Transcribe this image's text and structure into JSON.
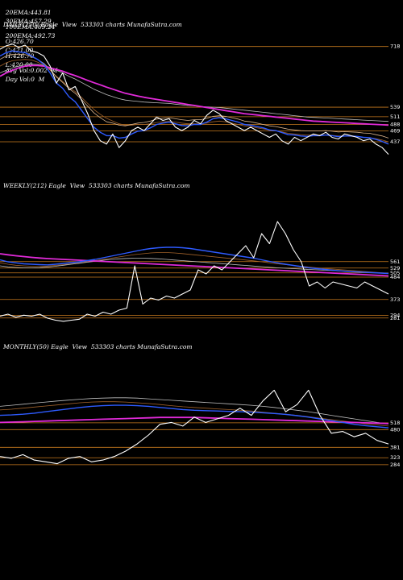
{
  "header": {
    "row1": [
      {
        "label": "20EMA:",
        "value": "443.81"
      },
      {
        "label": "100EMA:",
        "value": "469.24"
      },
      {
        "label": "O:",
        "value": "426.70"
      },
      {
        "label": "H:",
        "value": "426.70"
      },
      {
        "label": "Avg Vol:",
        "value": "0.002  M"
      }
    ],
    "row2": [
      {
        "label": "30EMA:",
        "value": "457.29"
      },
      {
        "label": "200EMA:",
        "value": "492.73"
      },
      {
        "label": "C:",
        "value": "421.00"
      },
      {
        "label": "L:",
        "value": "420.00"
      },
      {
        "label": "Day Vol:",
        "value": "0  M"
      }
    ]
  },
  "colors": {
    "background": "#000000",
    "price": "#ffffff",
    "level_line": "#c87a1e",
    "ema_blue": "#2e5bff",
    "ema_magenta": "#e02ad8",
    "ema_tan": "#d9b38c",
    "ema_gray": "#bdbdbd",
    "ema_brown": "#a0612a"
  },
  "chart_data": [
    {
      "type": "line",
      "title": "DAILY(250) Eagle  View  533303 charts MunafaSutra.com",
      "ylim": [
        380,
        760
      ],
      "levels": [
        {
          "value": 718,
          "label": "718"
        },
        {
          "value": 539,
          "label": "539"
        },
        {
          "value": 511,
          "label": "511"
        },
        {
          "value": 488,
          "label": "488"
        },
        {
          "value": 469,
          "label": "469"
        },
        {
          "value": 437,
          "label": "437"
        }
      ],
      "series": [
        {
          "key": "price",
          "values": [
            710,
            720,
            725,
            715,
            722,
            705,
            700,
            690,
            660,
            610,
            640,
            590,
            600,
            560,
            520,
            470,
            440,
            430,
            460,
            420,
            440,
            470,
            480,
            470,
            490,
            510,
            500,
            505,
            480,
            470,
            480,
            500,
            490,
            515,
            530,
            520,
            500,
            490,
            480,
            470,
            480,
            470,
            460,
            450,
            460,
            440,
            430,
            450,
            440,
            450,
            460,
            455,
            465,
            450,
            445,
            460,
            455,
            450,
            440,
            445,
            430,
            420,
            400
          ]
        },
        {
          "key": "ema20",
          "values": [
            690,
            700,
            705,
            702,
            700,
            690,
            680,
            665,
            640,
            610,
            595,
            570,
            555,
            530,
            505,
            480,
            465,
            455,
            455,
            448,
            450,
            460,
            468,
            470,
            478,
            488,
            492,
            495,
            490,
            485,
            484,
            488,
            488,
            495,
            505,
            508,
            505,
            500,
            495,
            488,
            486,
            482,
            478,
            472,
            470,
            464,
            458,
            457,
            454,
            453,
            455,
            455,
            457,
            455,
            452,
            454,
            454,
            453,
            450,
            449,
            444,
            438,
            430
          ]
        },
        {
          "key": "ema30",
          "values": [
            680,
            690,
            695,
            695,
            694,
            688,
            680,
            668,
            650,
            628,
            612,
            594,
            580,
            562,
            542,
            522,
            508,
            496,
            492,
            486,
            484,
            488,
            492,
            494,
            498,
            504,
            506,
            508,
            505,
            502,
            500,
            502,
            502,
            506,
            512,
            514,
            512,
            508,
            504,
            498,
            496,
            492,
            488,
            484,
            482,
            478,
            474,
            472,
            470,
            469,
            469,
            469,
            470,
            468,
            466,
            467,
            466,
            465,
            463,
            462,
            458,
            454,
            448
          ]
        },
        {
          "key": "ema100",
          "values": [
            640,
            648,
            655,
            660,
            664,
            666,
            665,
            662,
            656,
            648,
            640,
            630,
            622,
            612,
            602,
            592,
            584,
            576,
            570,
            564,
            560,
            558,
            556,
            554,
            553,
            552,
            551,
            550,
            548,
            546,
            544,
            543,
            541,
            540,
            539,
            538,
            536,
            534,
            532,
            530,
            528,
            526,
            524,
            522,
            520,
            518,
            516,
            514,
            512,
            510,
            509,
            508,
            507,
            506,
            505,
            504,
            503,
            502,
            501,
            500,
            499,
            498,
            497
          ]
        },
        {
          "key": "ema200",
          "values": [
            630,
            640,
            648,
            655,
            660,
            662,
            662,
            660,
            655,
            650,
            645,
            638,
            632,
            625,
            618,
            611,
            605,
            598,
            592,
            586,
            580,
            576,
            572,
            568,
            565,
            562,
            559,
            556,
            553,
            550,
            547,
            544,
            541,
            538,
            535,
            532,
            529,
            526,
            523,
            520,
            518,
            516,
            514,
            512,
            510,
            508,
            506,
            504,
            502,
            500,
            498,
            497,
            496,
            495,
            494,
            493,
            492,
            491,
            490,
            489,
            488,
            487,
            486
          ]
        },
        {
          "key": "ema_extra",
          "values": [
            660,
            670,
            676,
            678,
            680,
            678,
            672,
            662,
            648,
            630,
            615,
            598,
            585,
            568,
            550,
            532,
            518,
            506,
            498,
            490,
            486,
            486,
            488,
            488,
            490,
            494,
            496,
            497,
            495,
            492,
            490,
            490,
            490,
            492,
            496,
            498,
            496,
            492,
            488,
            484,
            482,
            478,
            475,
            472,
            470,
            466,
            462,
            460,
            458,
            457,
            457,
            457,
            457,
            456,
            454,
            454,
            453,
            452,
            450,
            449,
            446,
            442,
            437
          ]
        }
      ]
    },
    {
      "type": "line",
      "title": "WEEKLY(212) Eagle  View  533303 charts MunafaSutra.com",
      "ylim": [
        260,
        900
      ],
      "levels": [
        {
          "value": 561,
          "label": "561"
        },
        {
          "value": 529,
          "label": "529"
        },
        {
          "value": 505,
          "label": "505"
        },
        {
          "value": 484,
          "label": "484"
        },
        {
          "value": 373,
          "label": "373"
        },
        {
          "value": 294,
          "label": "294"
        },
        {
          "value": 281,
          "label": "281"
        }
      ],
      "series": [
        {
          "key": "price",
          "values": [
            290,
            300,
            285,
            295,
            290,
            300,
            280,
            270,
            265,
            270,
            275,
            300,
            290,
            310,
            300,
            320,
            330,
            540,
            350,
            380,
            370,
            390,
            380,
            400,
            420,
            520,
            500,
            540,
            520,
            560,
            600,
            640,
            580,
            700,
            650,
            760,
            700,
            620,
            560,
            440,
            460,
            430,
            460,
            450,
            440,
            430,
            460,
            440,
            420,
            400
          ]
        },
        {
          "key": "ema20",
          "values": [
            570,
            560,
            555,
            550,
            548,
            546,
            545,
            548,
            552,
            556,
            560,
            566,
            572,
            580,
            588,
            596,
            604,
            612,
            620,
            626,
            630,
            632,
            632,
            630,
            626,
            620,
            614,
            608,
            602,
            596,
            590,
            584,
            578,
            570,
            562,
            555,
            548,
            542,
            536,
            530,
            526,
            522,
            518,
            515,
            512,
            510,
            508,
            506,
            504,
            502
          ]
        },
        {
          "key": "ema100",
          "values": [
            540,
            535,
            532,
            530,
            530,
            531,
            534,
            538,
            543,
            548,
            553,
            558,
            563,
            568,
            572,
            575,
            577,
            578,
            578,
            577,
            575,
            572,
            569,
            566,
            563,
            560,
            557,
            554,
            551,
            548,
            545,
            542,
            539,
            536,
            533,
            530,
            528,
            526,
            524,
            522,
            520,
            518,
            516,
            514,
            512,
            510,
            508,
            506,
            504,
            502
          ]
        },
        {
          "key": "ema200",
          "values": [
            600,
            595,
            590,
            586,
            582,
            579,
            576,
            574,
            572,
            570,
            568,
            566,
            564,
            562,
            560,
            558,
            556,
            554,
            552,
            550,
            548,
            546,
            544,
            542,
            540,
            538,
            536,
            534,
            532,
            530,
            528,
            526,
            524,
            522,
            520,
            518,
            516,
            514,
            512,
            510,
            508,
            506,
            504,
            502,
            500,
            498,
            496,
            494,
            492,
            490
          ]
        },
        {
          "key": "ema_extra",
          "values": [
            555,
            548,
            543,
            540,
            538,
            538,
            539,
            542,
            546,
            550,
            555,
            560,
            566,
            572,
            578,
            584,
            590,
            596,
            600,
            604,
            606,
            606,
            604,
            601,
            597,
            593,
            589,
            585,
            581,
            577,
            573,
            569,
            565,
            560,
            555,
            550,
            546,
            542,
            538,
            534,
            530,
            527,
            524,
            521,
            518,
            515,
            512,
            509,
            506,
            503
          ]
        }
      ]
    },
    {
      "type": "line",
      "title": "MONTHLY(50) Eagle  View  533303 charts MunafaSutra.com",
      "ylim": [
        180,
        900
      ],
      "levels": [
        {
          "value": 518,
          "label": "518"
        },
        {
          "value": 480,
          "label": "480"
        },
        {
          "value": 381,
          "label": "381"
        },
        {
          "value": 323,
          "label": "323"
        },
        {
          "value": 284,
          "label": "284"
        }
      ],
      "series": [
        {
          "key": "price",
          "values": [
            330,
            320,
            340,
            310,
            300,
            290,
            320,
            330,
            300,
            310,
            330,
            360,
            400,
            450,
            510,
            520,
            500,
            550,
            520,
            540,
            560,
            600,
            560,
            640,
            700,
            580,
            620,
            700,
            560,
            460,
            470,
            440,
            460,
            420,
            400
          ]
        },
        {
          "key": "ema20",
          "values": [
            560,
            562,
            566,
            572,
            580,
            588,
            596,
            604,
            610,
            614,
            616,
            616,
            614,
            610,
            604,
            598,
            592,
            588,
            586,
            584,
            582,
            580,
            578,
            574,
            570,
            565,
            558,
            550,
            540,
            530,
            520,
            510,
            502,
            496,
            490
          ]
        },
        {
          "key": "ema100",
          "values": [
            610,
            616,
            622,
            628,
            634,
            640,
            645,
            650,
            654,
            656,
            658,
            658,
            656,
            652,
            648,
            644,
            640,
            636,
            632,
            628,
            624,
            620,
            616,
            610,
            604,
            596,
            588,
            580,
            570,
            560,
            550,
            540,
            530,
            520,
            512
          ]
        },
        {
          "key": "ema200",
          "values": [
            520,
            522,
            524,
            526,
            528,
            530,
            532,
            534,
            536,
            538,
            540,
            542,
            544,
            546,
            548,
            548,
            548,
            548,
            546,
            544,
            542,
            540,
            538,
            536,
            534,
            532,
            530,
            528,
            526,
            524,
            522,
            520,
            518,
            516,
            514
          ]
        },
        {
          "key": "ema_extra",
          "values": [
            590,
            594,
            600,
            606,
            612,
            618,
            624,
            630,
            634,
            636,
            636,
            634,
            630,
            626,
            620,
            614,
            608,
            604,
            600,
            596,
            592,
            588,
            584,
            578,
            572,
            566,
            560,
            552,
            544,
            536,
            528,
            520,
            512,
            506,
            500
          ]
        }
      ]
    }
  ]
}
